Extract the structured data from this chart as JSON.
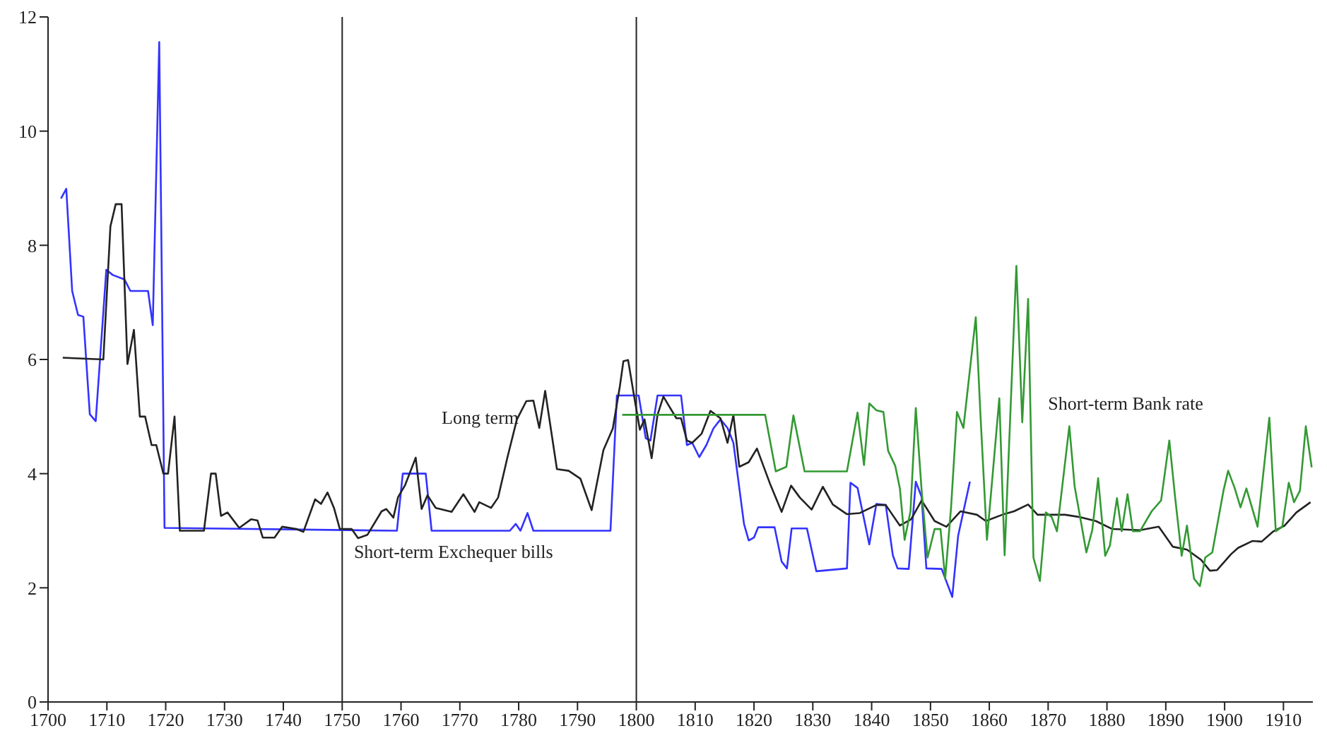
{
  "chart_data": {
    "type": "line",
    "xlim": [
      1700,
      1915
    ],
    "xticks": [
      1700,
      1710,
      1720,
      1730,
      1740,
      1750,
      1760,
      1770,
      1780,
      1790,
      1800,
      1810,
      1820,
      1830,
      1840,
      1850,
      1860,
      1870,
      1880,
      1890,
      1900,
      1910
    ],
    "ylim": [
      0,
      12
    ],
    "yticks": [
      0,
      2,
      4,
      6,
      8,
      10,
      12
    ],
    "grid": false,
    "legend": false,
    "marker": "none",
    "line_style": "solid",
    "ref_lines": [
      {
        "axis": "x",
        "value": 1750,
        "color": "#222222"
      },
      {
        "axis": "x",
        "value": 1800,
        "color": "#222222"
      }
    ],
    "series": [
      {
        "name": "Short-term Exchequer bills",
        "color": "#3333ff",
        "x": [
          1702.2,
          1703.1,
          1704.1,
          1705.1,
          1706,
          1707.1,
          1708.1,
          1709.9,
          1711,
          1713,
          1714,
          1717,
          1717.8,
          1718.9,
          1719.8,
          1759.3,
          1760.3,
          1764.2,
          1765.2,
          1778.5,
          1779.5,
          1780.3,
          1781.5,
          1782.5,
          1795.6,
          1796.7,
          1800.4,
          1801.6,
          1802.4,
          1803.6,
          1807.6,
          1808.6,
          1809.5,
          1810.7,
          1811.9,
          1813.1,
          1814.3,
          1815.5,
          1816.5,
          1818.3,
          1819.1,
          1820,
          1820.7,
          1823.5,
          1824.7,
          1825.6,
          1826.4,
          1829,
          1830.6,
          1835.8,
          1836.4,
          1837.6,
          1839.6,
          1840.8,
          1842.4,
          1843.6,
          1844.4,
          1846.3,
          1847.5,
          1848.5,
          1849.3,
          1851.9,
          1853.7,
          1854.7,
          1856.7
        ],
        "values": [
          8.82,
          8.99,
          7.2,
          6.78,
          6.75,
          5.04,
          4.92,
          7.57,
          7.48,
          7.4,
          7.2,
          7.2,
          6.6,
          11.56,
          3.05,
          3.0,
          4.0,
          4.0,
          3.0,
          3.0,
          3.12,
          3.0,
          3.31,
          3.0,
          3.0,
          5.37,
          5.37,
          4.62,
          4.58,
          5.37,
          5.37,
          4.5,
          4.54,
          4.29,
          4.5,
          4.79,
          4.95,
          4.8,
          4.54,
          3.12,
          2.83,
          2.88,
          3.06,
          3.06,
          2.46,
          2.34,
          3.04,
          3.04,
          2.29,
          2.34,
          3.84,
          3.75,
          2.76,
          3.47,
          3.45,
          2.57,
          2.34,
          2.33,
          3.86,
          3.59,
          2.34,
          2.33,
          1.84,
          2.91,
          3.86
        ]
      },
      {
        "name": "Long term",
        "color": "#222222",
        "x": [
          1702.5,
          1709.4,
          1710.6,
          1711.5,
          1712.5,
          1713.5,
          1714.6,
          1715.6,
          1716.5,
          1717.6,
          1718.4,
          1719.6,
          1720.4,
          1721.5,
          1722.4,
          1726.5,
          1727.7,
          1728.5,
          1729.4,
          1730.5,
          1732.5,
          1734.5,
          1735.6,
          1736.5,
          1738.5,
          1739.8,
          1742.2,
          1743.4,
          1745.4,
          1746.4,
          1747.5,
          1748.6,
          1749.6,
          1751.6,
          1752.7,
          1754.3,
          1756.7,
          1757.5,
          1758.7,
          1759.5,
          1760.7,
          1762.5,
          1763.5,
          1764.5,
          1765.9,
          1768.6,
          1770.6,
          1772.5,
          1773.3,
          1775.3,
          1776.5,
          1778.1,
          1779.7,
          1781.3,
          1782.5,
          1783.5,
          1784.5,
          1786.5,
          1788.5,
          1790.5,
          1792.4,
          1794.4,
          1796,
          1797.2,
          1797.8,
          1798.6,
          1799.6,
          1800.6,
          1801.4,
          1802.6,
          1803.6,
          1804.6,
          1806.8,
          1807.6,
          1808.6,
          1809.5,
          1811.1,
          1812.6,
          1814.3,
          1815.5,
          1816.5,
          1817.5,
          1819.1,
          1820.5,
          1822.7,
          1824.7,
          1826.3,
          1827.8,
          1829.8,
          1831.7,
          1833.4,
          1835.8,
          1838,
          1840.8,
          1842.4,
          1844.8,
          1846.7,
          1848.5,
          1850.7,
          1852.7,
          1855.1,
          1857.9,
          1859.4,
          1862.2,
          1864.2,
          1866.6,
          1868.2,
          1872.9,
          1875.3,
          1878.1,
          1880.9,
          1885.6,
          1888.8,
          1891.2,
          1893.6,
          1896,
          1897.5,
          1898.7,
          1901.1,
          1902.3,
          1904.7,
          1906.3,
          1908.3,
          1910.2,
          1912.2,
          1914.6
        ],
        "values": [
          6.03,
          6.0,
          8.33,
          8.72,
          8.72,
          5.92,
          6.52,
          5.0,
          5.0,
          4.5,
          4.5,
          4.0,
          4.0,
          5.0,
          3.0,
          3.0,
          4.0,
          4.0,
          3.26,
          3.32,
          3.05,
          3.2,
          3.18,
          2.88,
          2.88,
          3.07,
          3.03,
          2.98,
          3.55,
          3.47,
          3.67,
          3.4,
          3.03,
          3.03,
          2.87,
          2.93,
          3.34,
          3.38,
          3.23,
          3.59,
          3.8,
          4.28,
          3.38,
          3.62,
          3.4,
          3.33,
          3.64,
          3.33,
          3.5,
          3.4,
          3.58,
          4.29,
          4.95,
          5.27,
          5.28,
          4.8,
          5.45,
          4.08,
          4.05,
          3.91,
          3.36,
          4.41,
          4.79,
          5.53,
          5.97,
          5.99,
          5.37,
          4.77,
          4.95,
          4.27,
          5.03,
          5.35,
          4.97,
          4.97,
          4.58,
          4.54,
          4.7,
          5.1,
          4.97,
          4.54,
          5.03,
          4.12,
          4.2,
          4.44,
          3.83,
          3.33,
          3.79,
          3.58,
          3.37,
          3.77,
          3.46,
          3.29,
          3.31,
          3.45,
          3.45,
          3.09,
          3.2,
          3.53,
          3.17,
          3.07,
          3.34,
          3.28,
          3.17,
          3.28,
          3.34,
          3.46,
          3.28,
          3.28,
          3.24,
          3.17,
          3.03,
          3.01,
          3.07,
          2.72,
          2.67,
          2.49,
          2.3,
          2.31,
          2.59,
          2.7,
          2.82,
          2.81,
          2.99,
          3.09,
          3.32,
          3.5
        ]
      },
      {
        "name": "Short-term Bank rate",
        "color": "#339933",
        "x": [
          1797.6,
          1821.9,
          1823.7,
          1825.5,
          1826.7,
          1828.6,
          1835.8,
          1837.6,
          1838.7,
          1839.6,
          1840.8,
          1842,
          1842.8,
          1844,
          1844.8,
          1845.6,
          1846.6,
          1847.5,
          1848.5,
          1849.5,
          1850.7,
          1851.7,
          1852.5,
          1853.5,
          1854.5,
          1855.6,
          1857.7,
          1858.5,
          1859.6,
          1861.7,
          1862.6,
          1864.6,
          1865.6,
          1866.6,
          1867.5,
          1868.6,
          1869.6,
          1870.6,
          1871.5,
          1873.6,
          1874.5,
          1876.5,
          1877.5,
          1878.5,
          1879.7,
          1880.5,
          1881.7,
          1882.5,
          1883.5,
          1884.4,
          1885.6,
          1887.6,
          1889.2,
          1890.6,
          1891.6,
          1892.7,
          1893.6,
          1894.8,
          1895.8,
          1896.7,
          1897.9,
          1899.8,
          1900.6,
          1901.7,
          1902.7,
          1903.7,
          1905.6,
          1907.6,
          1908.7,
          1909.8,
          1910.9,
          1911.8,
          1912.8,
          1913.8,
          1914.8
        ],
        "values": [
          5.03,
          5.03,
          4.04,
          4.12,
          5.02,
          4.04,
          4.04,
          5.07,
          4.15,
          5.23,
          5.11,
          5.08,
          4.4,
          4.14,
          3.74,
          2.84,
          3.34,
          5.15,
          3.7,
          2.53,
          3.03,
          3.03,
          2.16,
          3.41,
          5.08,
          4.8,
          6.74,
          5.02,
          2.84,
          5.32,
          2.57,
          7.64,
          4.9,
          7.06,
          2.53,
          2.12,
          3.32,
          3.24,
          2.99,
          4.83,
          3.78,
          2.62,
          3.01,
          3.92,
          2.56,
          2.74,
          3.57,
          2.99,
          3.64,
          2.99,
          2.99,
          3.34,
          3.53,
          4.58,
          3.57,
          2.56,
          3.09,
          2.16,
          2.03,
          2.53,
          2.62,
          3.7,
          4.05,
          3.75,
          3.41,
          3.74,
          3.07,
          4.98,
          2.99,
          3.07,
          3.84,
          3.5,
          3.7,
          4.83,
          4.11
        ]
      }
    ]
  }
}
